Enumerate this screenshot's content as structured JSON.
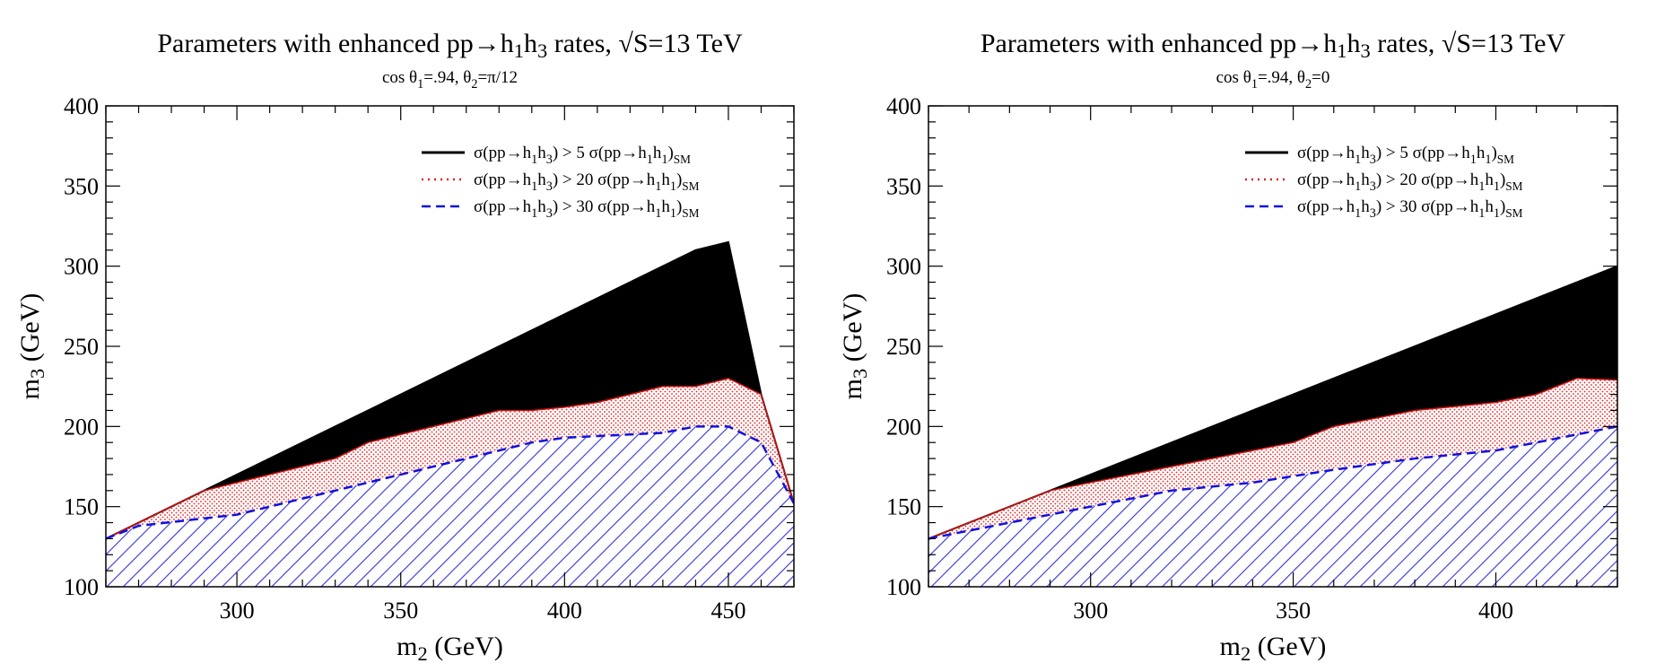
{
  "chart_data": [
    {
      "type": "area",
      "title": "Parameters with enhanced pp→h₁h₃ rates, √S=13 TeV",
      "subtitle": "cos θ₁=.94, θ₂=π/12",
      "xlabel": "m₂ (GeV)",
      "ylabel": "m₃ (GeV)",
      "xlim": [
        260,
        470
      ],
      "ylim": [
        100,
        400
      ],
      "xticks": [
        300,
        350,
        400,
        450
      ],
      "yticks": [
        100,
        150,
        200,
        250,
        300,
        350,
        400
      ],
      "legend_position": "top-right",
      "series": [
        {
          "name": "σ(pp→h₁h₃) > 5 σ(pp→h₁h₁)SM",
          "style": "solid-fill",
          "color": "#000000",
          "x": [
            260,
            290,
            340,
            390,
            440,
            450,
            460,
            470
          ],
          "y": [
            130,
            160,
            210,
            260,
            310,
            315,
            220,
            152
          ]
        },
        {
          "name": "σ(pp→h₁h₃) > 20 σ(pp→h₁h₁)SM",
          "style": "dotted-fill",
          "color": "#dd2222",
          "x": [
            260,
            290,
            300,
            330,
            340,
            350,
            380,
            390,
            400,
            410,
            420,
            430,
            440,
            450,
            460,
            470
          ],
          "y": [
            130,
            160,
            165,
            180,
            190,
            195,
            210,
            210,
            212,
            215,
            220,
            225,
            225,
            230,
            220,
            152
          ]
        },
        {
          "name": "σ(pp→h₁h₃) > 30 σ(pp→h₁h₁)SM",
          "style": "hatched-fill",
          "color": "#2222ee",
          "x": [
            260,
            270,
            300,
            330,
            350,
            370,
            380,
            390,
            400,
            410,
            420,
            430,
            440,
            450,
            460,
            470
          ],
          "y": [
            130,
            138,
            145,
            160,
            170,
            180,
            185,
            190,
            193,
            194,
            195,
            196,
            200,
            200,
            190,
            152
          ]
        }
      ]
    },
    {
      "type": "area",
      "title": "Parameters with enhanced pp→h₁h₃ rates, √S=13 TeV",
      "subtitle": "cos θ₁=.94, θ₂=0",
      "xlabel": "m₂ (GeV)",
      "ylabel": "m₃ (GeV)",
      "xlim": [
        260,
        430
      ],
      "ylim": [
        100,
        400
      ],
      "xticks": [
        300,
        350,
        400
      ],
      "yticks": [
        100,
        150,
        200,
        250,
        300,
        350,
        400
      ],
      "legend_position": "top-right",
      "series": [
        {
          "name": "σ(pp→h₁h₃) > 5 σ(pp→h₁h₁)SM",
          "style": "solid-fill",
          "color": "#000000",
          "x": [
            260,
            290,
            430
          ],
          "y": [
            130,
            160,
            300
          ]
        },
        {
          "name": "σ(pp→h₁h₃) > 20 σ(pp→h₁h₁)SM",
          "style": "dotted-fill",
          "color": "#dd2222",
          "x": [
            260,
            290,
            310,
            350,
            360,
            380,
            400,
            410,
            420,
            430
          ],
          "y": [
            130,
            160,
            170,
            190,
            200,
            210,
            215,
            220,
            230,
            229
          ]
        },
        {
          "name": "σ(pp→h₁h₃) > 30 σ(pp→h₁h₁)SM",
          "style": "hatched-fill",
          "color": "#2222ee",
          "x": [
            260,
            300,
            320,
            340,
            360,
            380,
            400,
            410,
            420,
            430
          ],
          "y": [
            130,
            150,
            160,
            165,
            173,
            180,
            185,
            190,
            195,
            200
          ]
        }
      ]
    }
  ]
}
